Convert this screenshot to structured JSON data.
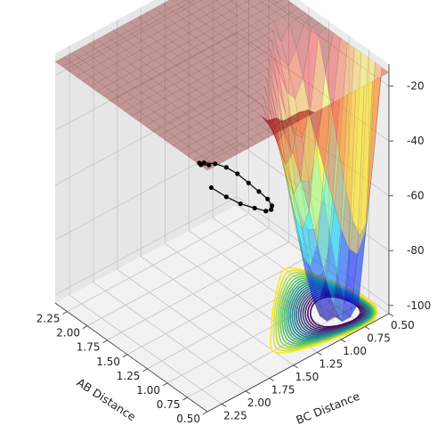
{
  "chart_data": {
    "type": "surface3d",
    "title": "",
    "xlabel": "AB Distance",
    "ylabel": "BC Distance",
    "zlabel": "",
    "x_ticks": [
      "0.50",
      "0.75",
      "1.00",
      "1.25",
      "1.50",
      "1.75",
      "2.00",
      "2.25"
    ],
    "y_ticks": [
      "0.50",
      "0.75",
      "1.00",
      "1.25",
      "1.50",
      "1.75",
      "2.00",
      "2.25"
    ],
    "z_ticks": [
      "-100",
      "-80",
      "-60",
      "-40",
      "-20"
    ],
    "xlim": [
      0.5,
      2.4
    ],
    "ylim": [
      0.5,
      2.4
    ],
    "zlim": [
      -103,
      -12
    ],
    "grid": true,
    "surface_colormap": "jet",
    "surface_alpha": 0.35,
    "contour_colormap": "viridis",
    "trajectory": {
      "color": "#000000",
      "points": [
        {
          "x": 0.6,
          "y": 2.3,
          "z": -17
        },
        {
          "x": 0.7,
          "y": 2.3,
          "z": -19
        },
        {
          "x": 0.78,
          "y": 2.25,
          "z": -21
        },
        {
          "x": 0.84,
          "y": 2.15,
          "z": -24
        },
        {
          "x": 0.88,
          "y": 2.0,
          "z": -28
        },
        {
          "x": 0.92,
          "y": 1.85,
          "z": -33
        },
        {
          "x": 0.96,
          "y": 1.7,
          "z": -39
        },
        {
          "x": 1.0,
          "y": 1.55,
          "z": -46
        },
        {
          "x": 1.05,
          "y": 1.4,
          "z": -53
        },
        {
          "x": 1.12,
          "y": 1.25,
          "z": -60
        },
        {
          "x": 1.22,
          "y": 1.12,
          "z": -67
        },
        {
          "x": 1.35,
          "y": 1.02,
          "z": -73
        },
        {
          "x": 1.5,
          "y": 0.95,
          "z": -78
        },
        {
          "x": 1.7,
          "y": 0.9,
          "z": -82
        },
        {
          "x": 1.9,
          "y": 0.88,
          "z": -85
        },
        {
          "x": 2.1,
          "y": 0.86,
          "z": -87
        },
        {
          "x": 2.3,
          "y": 0.85,
          "z": -88
        }
      ]
    }
  }
}
